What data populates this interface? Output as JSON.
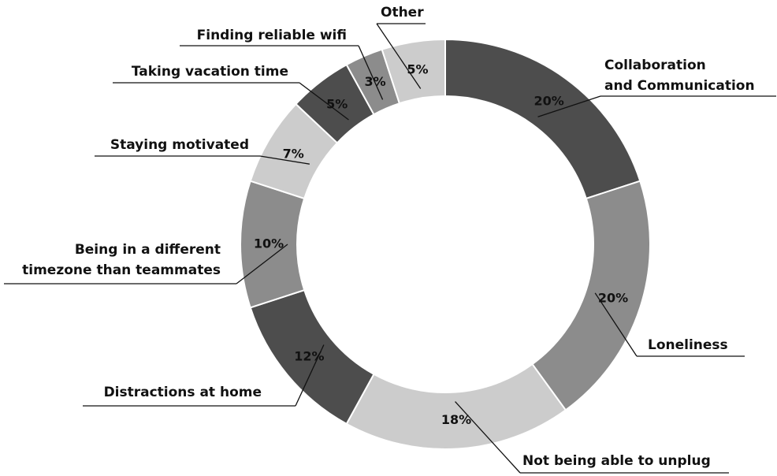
{
  "chart_data": {
    "type": "donut",
    "categories": [
      "Collaboration\nand Communication",
      "Loneliness",
      "Not being able to unplug",
      "Distractions at home",
      "Being in a different\ntimezone than teammates",
      "Staying motivated",
      "Taking vacation time",
      "Finding reliable wifi",
      "Other"
    ],
    "values": [
      20,
      20,
      18,
      12,
      10,
      7,
      5,
      3,
      5
    ],
    "value_labels": [
      "20%",
      "20%",
      "18%",
      "12%",
      "10%",
      "7%",
      "5%",
      "3%",
      "5%"
    ],
    "colors": [
      "#4d4d4d",
      "#8c8c8c",
      "#cccccc",
      "#4d4d4d",
      "#8c8c8c",
      "#cccccc",
      "#4d4d4d",
      "#8c8c8c",
      "#cccccc"
    ]
  }
}
